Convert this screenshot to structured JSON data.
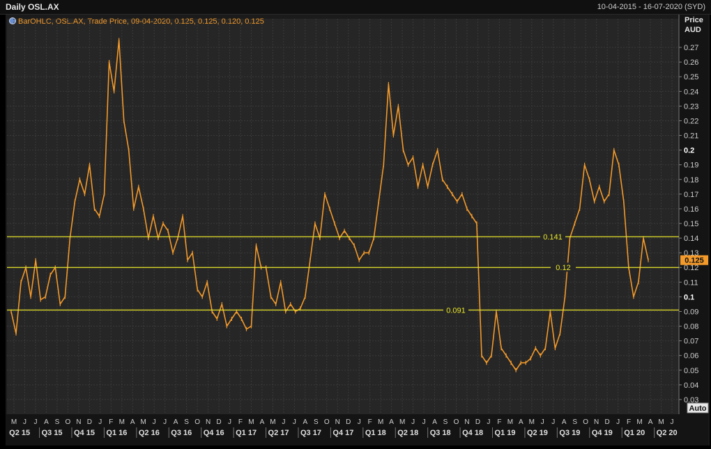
{
  "window": {
    "title": "Daily OSL.AX",
    "date_range": "10-04-2015 - 16-07-2020 (SYD)"
  },
  "legend": {
    "text": "BarOHLC, OSL.AX, Trade Price, 09-04-2020, 0.125, 0.125, 0.120, 0.125",
    "icon": "settings-icon"
  },
  "axis_labels": {
    "price": "Price",
    "currency": "AUD",
    "auto_button": "Auto"
  },
  "colors": {
    "background": "#262626",
    "grid": "#3a3a3a",
    "series": "#f39a2b",
    "reference_line": "#e8e62a",
    "last_price_bg": "#f39a2b",
    "text": "#d8d8d8"
  },
  "chart_data": {
    "type": "line",
    "ylim": [
      0.02,
      0.28
    ],
    "yticks": [
      "0.27",
      "0.26",
      "0.25",
      "0.24",
      "0.23",
      "0.22",
      "0.21",
      "0.2",
      "0.19",
      "0.18",
      "0.17",
      "0.16",
      "0.15",
      "0.14",
      "0.13",
      "0.12",
      "0.11",
      "0.1",
      "0.09",
      "0.08",
      "0.07",
      "0.06",
      "0.05",
      "0.04",
      "0.03"
    ],
    "yticks_bold": [
      "0.2",
      "0.1"
    ],
    "month_labels": [
      "M",
      "J",
      "J",
      "A",
      "S",
      "O",
      "N",
      "D",
      "J",
      "F",
      "M",
      "A",
      "M",
      "J",
      "J",
      "A",
      "S",
      "O",
      "N",
      "D",
      "J",
      "F",
      "M",
      "A",
      "M",
      "J",
      "J",
      "A",
      "S",
      "O",
      "N",
      "D",
      "J",
      "F",
      "M",
      "A",
      "M",
      "J",
      "J",
      "A",
      "S",
      "O",
      "N",
      "D",
      "J",
      "F",
      "M",
      "A",
      "M",
      "J",
      "J",
      "A",
      "S",
      "O",
      "N",
      "D",
      "J",
      "F",
      "M",
      "A",
      "M",
      "J"
    ],
    "quarter_labels": [
      "Q2 15",
      "Q3 15",
      "Q4 15",
      "Q1 16",
      "Q2 16",
      "Q3 16",
      "Q4 16",
      "Q1 17",
      "Q2 17",
      "Q3 17",
      "Q4 17",
      "Q1 18",
      "Q2 18",
      "Q3 18",
      "Q4 18",
      "Q1 19",
      "Q2 19",
      "Q3 19",
      "Q4 19",
      "Q1 20",
      "Q2 20"
    ],
    "reference_lines": [
      {
        "label": "0.141",
        "value": 0.141
      },
      {
        "label": "0.12",
        "value": 0.12
      },
      {
        "label": "0.091",
        "value": 0.091
      }
    ],
    "last_price": {
      "label": "0.125",
      "value": 0.125
    },
    "series": [
      {
        "points": [
          [
            0,
            0.09
          ],
          [
            1,
            0.075
          ],
          [
            2,
            0.11
          ],
          [
            3,
            0.12
          ],
          [
            4,
            0.1
          ],
          [
            5,
            0.125
          ],
          [
            6,
            0.098
          ],
          [
            7,
            0.1
          ],
          [
            8,
            0.115
          ],
          [
            9,
            0.12
          ],
          [
            10,
            0.095
          ],
          [
            11,
            0.1
          ],
          [
            12,
            0.14
          ],
          [
            13,
            0.165
          ],
          [
            14,
            0.18
          ],
          [
            15,
            0.17
          ],
          [
            16,
            0.19
          ],
          [
            17,
            0.16
          ],
          [
            18,
            0.155
          ],
          [
            19,
            0.17
          ],
          [
            20,
            0.26
          ],
          [
            21,
            0.24
          ],
          [
            22,
            0.275
          ],
          [
            23,
            0.22
          ],
          [
            24,
            0.2
          ],
          [
            25,
            0.16
          ],
          [
            26,
            0.175
          ],
          [
            27,
            0.16
          ],
          [
            28,
            0.14
          ],
          [
            29,
            0.155
          ],
          [
            30,
            0.14
          ],
          [
            31,
            0.15
          ],
          [
            32,
            0.145
          ],
          [
            33,
            0.13
          ],
          [
            34,
            0.14
          ],
          [
            35,
            0.155
          ],
          [
            36,
            0.125
          ],
          [
            37,
            0.13
          ],
          [
            38,
            0.105
          ],
          [
            39,
            0.1
          ],
          [
            40,
            0.11
          ],
          [
            41,
            0.09
          ],
          [
            42,
            0.085
          ],
          [
            43,
            0.095
          ],
          [
            44,
            0.08
          ],
          [
            45,
            0.085
          ],
          [
            46,
            0.09
          ],
          [
            47,
            0.085
          ],
          [
            48,
            0.078
          ],
          [
            49,
            0.08
          ],
          [
            50,
            0.135
          ],
          [
            51,
            0.12
          ],
          [
            52,
            0.12
          ],
          [
            53,
            0.1
          ],
          [
            54,
            0.095
          ],
          [
            55,
            0.11
          ],
          [
            56,
            0.09
          ],
          [
            57,
            0.095
          ],
          [
            58,
            0.09
          ],
          [
            59,
            0.092
          ],
          [
            60,
            0.1
          ],
          [
            61,
            0.125
          ],
          [
            62,
            0.15
          ],
          [
            63,
            0.14
          ],
          [
            64,
            0.17
          ],
          [
            65,
            0.16
          ],
          [
            66,
            0.15
          ],
          [
            67,
            0.14
          ],
          [
            68,
            0.145
          ],
          [
            69,
            0.14
          ],
          [
            70,
            0.135
          ],
          [
            71,
            0.125
          ],
          [
            72,
            0.13
          ],
          [
            73,
            0.13
          ],
          [
            74,
            0.14
          ],
          [
            75,
            0.165
          ],
          [
            76,
            0.19
          ],
          [
            77,
            0.245
          ],
          [
            78,
            0.21
          ],
          [
            79,
            0.23
          ],
          [
            80,
            0.2
          ],
          [
            81,
            0.19
          ],
          [
            82,
            0.195
          ],
          [
            83,
            0.175
          ],
          [
            84,
            0.19
          ],
          [
            85,
            0.175
          ],
          [
            86,
            0.19
          ],
          [
            87,
            0.2
          ],
          [
            88,
            0.18
          ],
          [
            89,
            0.175
          ],
          [
            90,
            0.17
          ],
          [
            91,
            0.165
          ],
          [
            92,
            0.17
          ],
          [
            93,
            0.16
          ],
          [
            94,
            0.155
          ],
          [
            95,
            0.15
          ],
          [
            96,
            0.06
          ],
          [
            97,
            0.055
          ],
          [
            98,
            0.06
          ],
          [
            99,
            0.09
          ],
          [
            100,
            0.065
          ],
          [
            101,
            0.06
          ],
          [
            102,
            0.055
          ],
          [
            103,
            0.05
          ],
          [
            104,
            0.055
          ],
          [
            105,
            0.055
          ],
          [
            106,
            0.058
          ],
          [
            107,
            0.065
          ],
          [
            108,
            0.06
          ],
          [
            109,
            0.065
          ],
          [
            110,
            0.09
          ],
          [
            111,
            0.065
          ],
          [
            112,
            0.075
          ],
          [
            113,
            0.1
          ],
          [
            114,
            0.14
          ],
          [
            115,
            0.15
          ],
          [
            116,
            0.16
          ],
          [
            117,
            0.19
          ],
          [
            118,
            0.18
          ],
          [
            119,
            0.165
          ],
          [
            120,
            0.175
          ],
          [
            121,
            0.165
          ],
          [
            122,
            0.17
          ],
          [
            123,
            0.2
          ],
          [
            124,
            0.19
          ],
          [
            125,
            0.165
          ],
          [
            126,
            0.12
          ],
          [
            127,
            0.1
          ],
          [
            128,
            0.11
          ],
          [
            129,
            0.14
          ],
          [
            130,
            0.125
          ]
        ]
      }
    ]
  }
}
